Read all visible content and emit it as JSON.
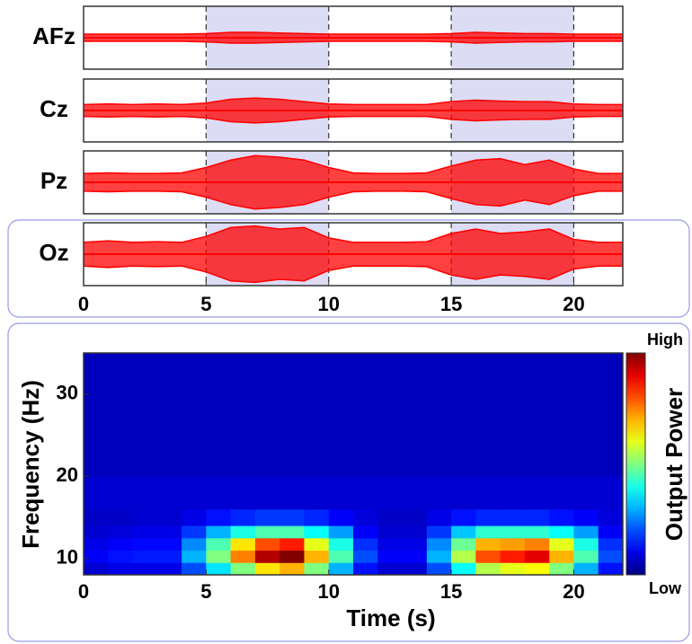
{
  "chart_data": [
    {
      "type": "trace",
      "x": [
        0,
        1,
        2,
        3,
        4,
        5,
        6,
        7,
        8,
        9,
        10,
        11,
        12,
        13,
        14,
        15,
        16,
        17,
        18,
        19,
        20,
        21,
        22
      ],
      "xlim": [
        0,
        22
      ],
      "xticks": [
        0,
        5,
        10,
        15,
        20
      ],
      "ylim": [
        -1,
        1
      ],
      "shaded": [
        [
          5,
          10
        ],
        [
          15,
          20
        ]
      ],
      "shade_color": "#dcdcf5",
      "series": [
        {
          "name": "AFz",
          "color": "#ff0000",
          "values": [
            0.12,
            0.12,
            0.12,
            0.12,
            0.12,
            0.14,
            0.18,
            0.18,
            0.16,
            0.14,
            0.12,
            0.12,
            0.12,
            0.12,
            0.12,
            0.14,
            0.18,
            0.16,
            0.14,
            0.14,
            0.12,
            0.12,
            0.12
          ]
        },
        {
          "name": "Cz",
          "color": "#ff0000",
          "values": [
            0.2,
            0.22,
            0.2,
            0.22,
            0.2,
            0.25,
            0.38,
            0.42,
            0.38,
            0.3,
            0.22,
            0.2,
            0.2,
            0.2,
            0.2,
            0.3,
            0.35,
            0.32,
            0.3,
            0.3,
            0.22,
            0.2,
            0.2
          ]
        },
        {
          "name": "Pz",
          "color": "#ff0000",
          "values": [
            0.3,
            0.32,
            0.3,
            0.3,
            0.32,
            0.5,
            0.75,
            0.9,
            0.85,
            0.75,
            0.5,
            0.32,
            0.3,
            0.3,
            0.32,
            0.55,
            0.75,
            0.8,
            0.6,
            0.75,
            0.45,
            0.3,
            0.3
          ]
        },
        {
          "name": "Oz",
          "color": "#ff0000",
          "values": [
            0.4,
            0.45,
            0.4,
            0.42,
            0.4,
            0.6,
            0.9,
            0.95,
            0.85,
            0.9,
            0.55,
            0.4,
            0.4,
            0.4,
            0.42,
            0.7,
            0.85,
            0.7,
            0.75,
            0.85,
            0.5,
            0.4,
            0.4
          ]
        }
      ]
    },
    {
      "type": "heatmap",
      "xlabel": "Time (s)",
      "ylabel": "Frequency (Hz)",
      "xlim": [
        0,
        22
      ],
      "xticks": [
        0,
        5,
        10,
        15,
        20
      ],
      "ylim": [
        8,
        35
      ],
      "yticks": [
        10,
        20,
        30
      ],
      "xbins": [
        0,
        1,
        2,
        3,
        4,
        5,
        6,
        7,
        8,
        9,
        10,
        11,
        12,
        13,
        14,
        15,
        16,
        17,
        18,
        19,
        20,
        21,
        22
      ],
      "ybins": [
        8,
        9.5,
        11,
        12.5,
        14,
        16,
        20,
        35
      ],
      "z": [
        [
          0.08,
          0.1,
          0.1,
          0.1,
          0.2,
          0.35,
          0.5,
          0.65,
          0.7,
          0.5,
          0.3,
          0.14,
          0.08,
          0.08,
          0.2,
          0.38,
          0.55,
          0.6,
          0.62,
          0.5,
          0.3,
          0.14
        ],
        [
          0.12,
          0.14,
          0.15,
          0.15,
          0.3,
          0.5,
          0.75,
          0.95,
          1.0,
          0.7,
          0.45,
          0.2,
          0.12,
          0.12,
          0.3,
          0.55,
          0.8,
          0.85,
          0.9,
          0.7,
          0.45,
          0.2
        ],
        [
          0.1,
          0.12,
          0.13,
          0.13,
          0.26,
          0.45,
          0.65,
          0.8,
          0.85,
          0.6,
          0.4,
          0.17,
          0.1,
          0.1,
          0.26,
          0.48,
          0.7,
          0.72,
          0.75,
          0.6,
          0.4,
          0.17
        ],
        [
          0.08,
          0.09,
          0.1,
          0.1,
          0.18,
          0.3,
          0.4,
          0.45,
          0.45,
          0.38,
          0.28,
          0.12,
          0.08,
          0.08,
          0.18,
          0.32,
          0.42,
          0.42,
          0.42,
          0.38,
          0.28,
          0.12
        ],
        [
          0.07,
          0.07,
          0.08,
          0.08,
          0.1,
          0.14,
          0.16,
          0.18,
          0.18,
          0.16,
          0.12,
          0.09,
          0.07,
          0.07,
          0.1,
          0.14,
          0.16,
          0.16,
          0.16,
          0.14,
          0.12,
          0.09
        ],
        [
          0.08,
          0.08,
          0.08,
          0.08,
          0.08,
          0.08,
          0.08,
          0.08,
          0.08,
          0.08,
          0.08,
          0.08,
          0.08,
          0.08,
          0.08,
          0.08,
          0.08,
          0.08,
          0.08,
          0.08,
          0.08,
          0.08
        ],
        [
          0.06,
          0.06,
          0.06,
          0.06,
          0.06,
          0.06,
          0.06,
          0.06,
          0.06,
          0.06,
          0.06,
          0.06,
          0.06,
          0.06,
          0.06,
          0.06,
          0.06,
          0.06,
          0.06,
          0.06,
          0.06,
          0.06
        ]
      ],
      "colorbar": {
        "label": "Output Power",
        "high": "High",
        "low": "Low"
      }
    }
  ]
}
